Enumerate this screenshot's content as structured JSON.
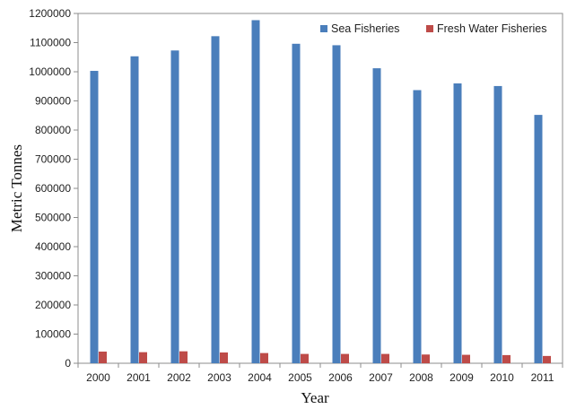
{
  "chart_data": {
    "type": "bar",
    "title": "",
    "xlabel": "Year",
    "ylabel": "Metric Tonnes",
    "categories": [
      "2000",
      "2001",
      "2002",
      "2003",
      "2004",
      "2005",
      "2006",
      "2007",
      "2008",
      "2009",
      "2010",
      "2011"
    ],
    "series": [
      {
        "name": "Sea Fisheries",
        "color": "#4a7ebb",
        "values": [
          1003000,
          1053000,
          1073000,
          1122000,
          1177000,
          1096000,
          1091000,
          1012000,
          937000,
          960000,
          951000,
          852000
        ]
      },
      {
        "name": "Fresh Water Fisheries",
        "color": "#be4b48",
        "values": [
          40000,
          38000,
          41000,
          37000,
          35000,
          32000,
          32000,
          32000,
          30000,
          29000,
          28000,
          25000
        ]
      }
    ],
    "ylim": [
      0,
      1200000
    ],
    "yticks": [
      "0",
      "100000",
      "200000",
      "300000",
      "400000",
      "500000",
      "600000",
      "700000",
      "800000",
      "900000",
      "1000000",
      "1100000",
      "1200000"
    ],
    "grid": false,
    "legend_position": "top-right"
  }
}
